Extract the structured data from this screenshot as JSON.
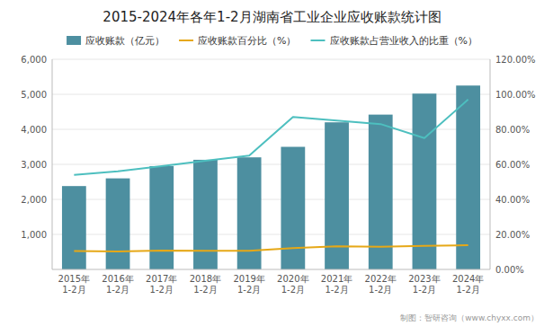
{
  "chart_data": {
    "type": "bar",
    "title": "2015-2024年各年1-2月湖南省工业企业应收账款统计图",
    "categories": [
      "2015年\n1-2月",
      "2016年\n1-2月",
      "2017年\n1-2月",
      "2018年\n1-2月",
      "2019年\n1-2月",
      "2020年\n1-2月",
      "2021年\n1-2月",
      "2022年\n1-2月",
      "2023年\n1-2月",
      "2024年\n1-2月"
    ],
    "series": [
      {
        "name": "应收账款（亿元）",
        "type": "bar",
        "color": "#4d8fa0",
        "values": [
          2380,
          2600,
          2950,
          3130,
          3200,
          3500,
          4200,
          4420,
          5020,
          5250
        ]
      },
      {
        "name": "应收账款百分比（%）",
        "type": "line",
        "color": "#e6a817",
        "axis": "y2",
        "values": [
          10.5,
          10.3,
          10.8,
          10.7,
          10.6,
          12.2,
          13.2,
          13.0,
          13.5,
          13.8
        ]
      },
      {
        "name": "应收账款占营业收入的比重（%）",
        "type": "line",
        "color": "#4dbfbf",
        "axis": "y2",
        "values": [
          54,
          56,
          59,
          62,
          65,
          87,
          85,
          83,
          75,
          97
        ]
      }
    ],
    "ylim": [
      0,
      6000
    ],
    "yticks": [
      {
        "value": 1000,
        "label": "1,000"
      },
      {
        "value": 2000,
        "label": "2,000"
      },
      {
        "value": 3000,
        "label": "3,000"
      },
      {
        "value": 4000,
        "label": "4,000"
      },
      {
        "value": 5000,
        "label": "5,000"
      },
      {
        "value": 6000,
        "label": "6,000"
      }
    ],
    "y2lim": [
      0,
      120
    ],
    "y2ticks": [
      {
        "value": 0,
        "label": "0.00%"
      },
      {
        "value": 20,
        "label": "20.00%"
      },
      {
        "value": 40,
        "label": "40.00%"
      },
      {
        "value": 60,
        "label": "60.00%"
      },
      {
        "value": 80,
        "label": "80.00%"
      },
      {
        "value": 100,
        "label": "100.00%"
      },
      {
        "value": 120,
        "label": "120.00%"
      }
    ],
    "grid": true,
    "legend": "top",
    "annotations": [
      "制图：智研咨询（www.chyxx.com）"
    ]
  }
}
